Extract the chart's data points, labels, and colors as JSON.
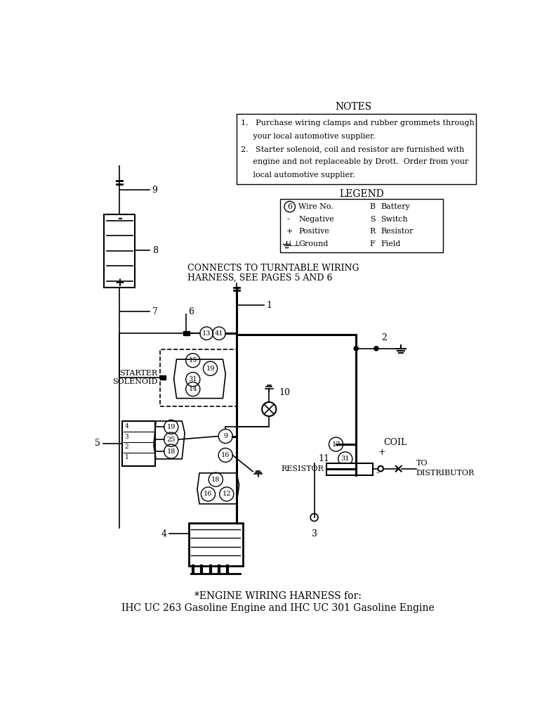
{
  "bg_color": "#ffffff",
  "title_line1": "*ENGINE WIRING HARNESS for:",
  "title_line2": "IHC UC 263 Gasoline Engine and IHC UC 301 Gasoline Engine",
  "notes_title": "NOTES",
  "notes_line1": "1.   Purchase wiring clamps and rubber grommets through",
  "notes_line2": "     your local automotive supplier.",
  "notes_line3": "2.   Starter solenoid, coil and resistor are furnished with",
  "notes_line4": "     engine and not replaceable by Drott.  Order from your",
  "notes_line5": "     local automotive supplier.",
  "legend_title": "LEGEND",
  "connects_text1": "CONNECTS TO TURNTABLE WIRING",
  "connects_text2": "HARNESS, SEE PAGES 5 AND 6",
  "starter_label1": "STARTER",
  "starter_label2": "SOLENOID",
  "coil_label": "COIL",
  "resistor_label": "RESISTOR",
  "dist_label1": "TO",
  "dist_label2": "DISTRIBUTOR"
}
